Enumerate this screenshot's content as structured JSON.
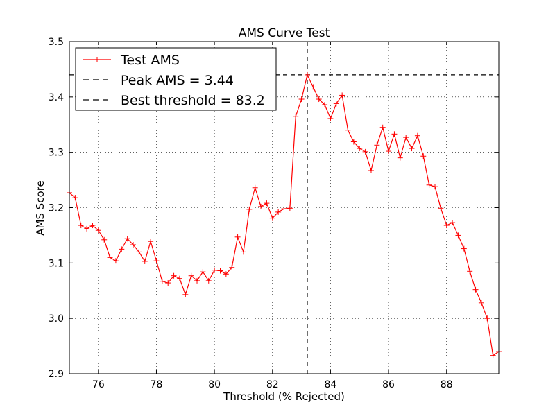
{
  "chart_data": {
    "type": "line",
    "title": "AMS Curve Test",
    "xlabel": "Threshold (% Rejected)",
    "ylabel": "AMS Score",
    "xlim": [
      75.0,
      89.8
    ],
    "ylim": [
      2.9,
      3.5
    ],
    "xticks": [
      76,
      78,
      80,
      82,
      84,
      86,
      88
    ],
    "xtick_labels": [
      "76",
      "78",
      "80",
      "82",
      "84",
      "86",
      "88"
    ],
    "yticks": [
      2.9,
      3.0,
      3.1,
      3.2,
      3.3,
      3.4,
      3.5
    ],
    "ytick_labels": [
      "2.9",
      "3.0",
      "3.1",
      "3.2",
      "3.3",
      "3.4",
      "3.5"
    ],
    "grid": true,
    "legend_position": "top-left",
    "series": [
      {
        "name": "Test AMS",
        "color": "#ff0000",
        "marker": "+",
        "x": [
          75.0,
          75.2,
          75.4,
          75.6,
          75.8,
          76.0,
          76.2,
          76.4,
          76.6,
          76.8,
          77.0,
          77.2,
          77.4,
          77.6,
          77.8,
          78.0,
          78.2,
          78.4,
          78.6,
          78.8,
          79.0,
          79.2,
          79.4,
          79.6,
          79.8,
          80.0,
          80.2,
          80.4,
          80.6,
          80.8,
          81.0,
          81.2,
          81.4,
          81.6,
          81.8,
          82.0,
          82.2,
          82.4,
          82.6,
          82.8,
          83.0,
          83.2,
          83.4,
          83.6,
          83.8,
          84.0,
          84.2,
          84.4,
          84.6,
          84.8,
          85.0,
          85.2,
          85.4,
          85.6,
          85.8,
          86.0,
          86.2,
          86.4,
          86.6,
          86.8,
          87.0,
          87.2,
          87.4,
          87.6,
          87.8,
          88.0,
          88.2,
          88.4,
          88.6,
          88.8,
          89.0,
          89.2,
          89.4,
          89.6,
          89.8
        ],
        "y": [
          3.227,
          3.218,
          3.168,
          3.162,
          3.168,
          3.159,
          3.142,
          3.11,
          3.104,
          3.125,
          3.144,
          3.133,
          3.12,
          3.103,
          3.139,
          3.104,
          3.067,
          3.064,
          3.077,
          3.072,
          3.043,
          3.077,
          3.068,
          3.084,
          3.068,
          3.087,
          3.086,
          3.08,
          3.092,
          3.147,
          3.12,
          3.197,
          3.236,
          3.202,
          3.208,
          3.181,
          3.192,
          3.198,
          3.199,
          3.365,
          3.396,
          3.44,
          3.418,
          3.396,
          3.386,
          3.361,
          3.388,
          3.403,
          3.34,
          3.319,
          3.307,
          3.301,
          3.267,
          3.313,
          3.345,
          3.302,
          3.333,
          3.29,
          3.327,
          3.307,
          3.33,
          3.293,
          3.241,
          3.238,
          3.199,
          3.168,
          3.173,
          3.15,
          3.126,
          3.085,
          3.052,
          3.028,
          3.0,
          2.933,
          2.94
        ]
      }
    ],
    "reference_lines": [
      {
        "name": "Peak AMS = 3.44",
        "orientation": "horizontal",
        "value": 3.44,
        "color": "#000000",
        "style": "dashed"
      },
      {
        "name": "Best threshold = 83.2",
        "orientation": "vertical",
        "value": 83.2,
        "color": "#000000",
        "style": "dashed"
      }
    ]
  }
}
